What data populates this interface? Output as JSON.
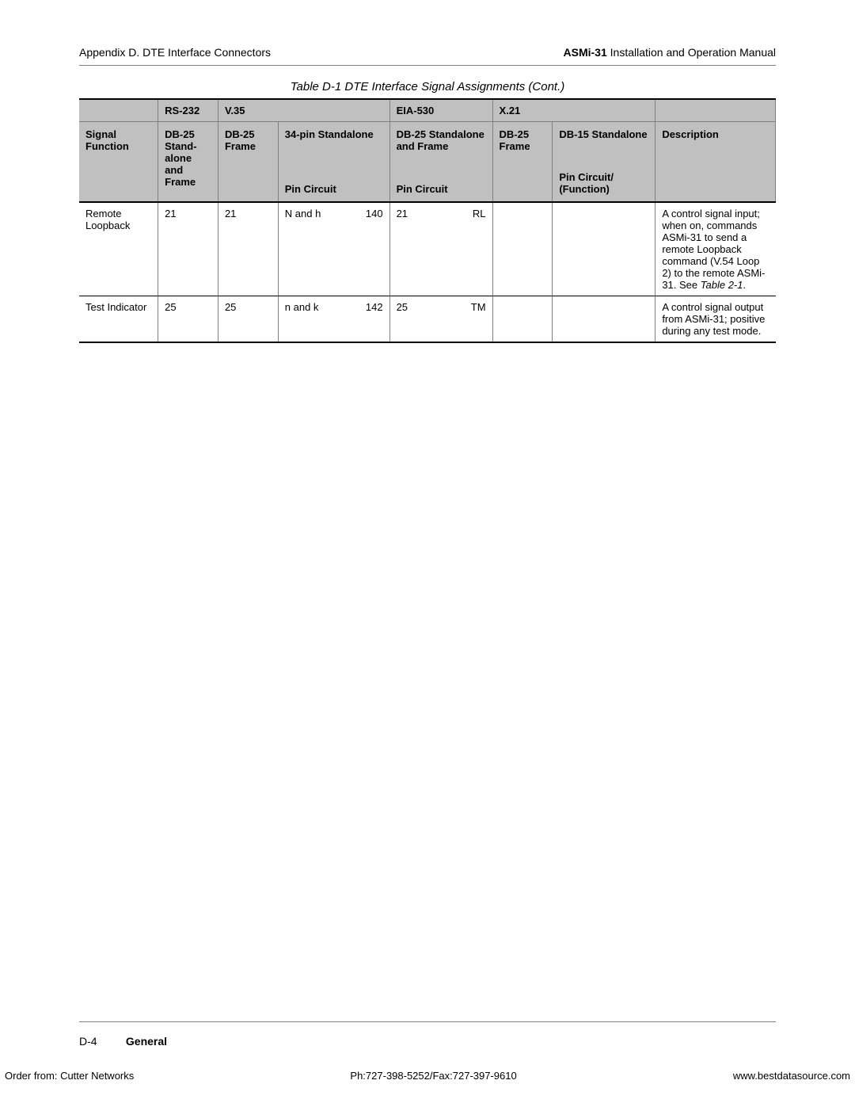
{
  "header": {
    "left_prefix": "Appendix D.  ",
    "left_title": "DTE Interface Connectors",
    "right_bold": "ASMi-31",
    "right_rest": " Installation and Operation Manual"
  },
  "table_title": "Table D-1  DTE Interface Signal Assignments (Cont.)",
  "columns": {
    "signal": "Signal Function",
    "rs232": "RS-232",
    "v35": "V.35",
    "eia": "EIA-530",
    "x21": "X.21",
    "desc": "Description",
    "rs232_sub": "DB-25 Stand-alone and Frame",
    "v35_sub_a": "DB-25 Frame",
    "v35_sub_b_top": "34-pin Standalone",
    "v35_sub_b_bot": "Pin Circuit",
    "eia_sub_top": "DB-25 Standalone and Frame",
    "eia_sub_bot": "Pin Circuit",
    "x21_sub_a": "DB-25 Frame",
    "x21_sub_b_top": "DB-15 Standalone",
    "x21_sub_b_bot": "Pin Circuit/ (Function)"
  },
  "rows": [
    {
      "signal": "Remote Loopback",
      "rs232": "21",
      "v35a": "21",
      "v35b_pin": "N and h",
      "v35b_circ": "140",
      "eia_pin": "21",
      "eia_circ": "RL",
      "x21a": "",
      "x21b": "",
      "desc_main": "A control signal input; when on, commands ASMi-31 to send a remote Loopback command (V.54 Loop 2) to the remote ASMi-31. See ",
      "desc_ref": "Table 2-1",
      "desc_tail": "."
    },
    {
      "signal": "Test Indicator",
      "rs232": "25",
      "v35a": "25",
      "v35b_pin": "n and k",
      "v35b_circ": "142",
      "eia_pin": "25",
      "eia_circ": "TM",
      "x21a": "",
      "x21b": "",
      "desc_main": "A control signal output from ASMi-31; positive during any test mode.",
      "desc_ref": "",
      "desc_tail": ""
    }
  ],
  "footer": {
    "page": "D-4",
    "section": "General"
  },
  "bottom": {
    "left": "Order from: Cutter Networks",
    "center": "Ph:727-398-5252/Fax:727-397-9610",
    "right": "www.bestdatasource.com"
  }
}
